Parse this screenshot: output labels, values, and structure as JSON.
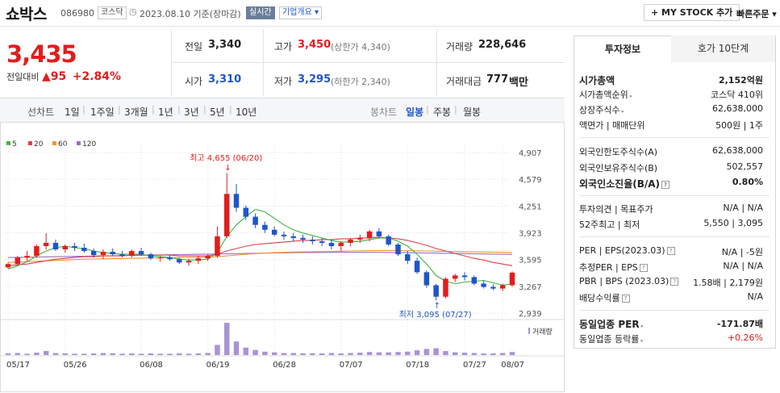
{
  "stock": {
    "name": "쇼박스",
    "code": "086980",
    "market": "코스닥",
    "date": "2023.08.10 기준(장마감)",
    "realtime": "실시간",
    "overview": "기업개요 ▾"
  },
  "header_buttons": {
    "my_stock": "+ MY STOCK 추가",
    "quick_order": "빠른주문 ▾"
  },
  "price": {
    "current": "3,435",
    "change_label": "전일대비",
    "change": "▲95",
    "change_pct": "+2.84%"
  },
  "quote": {
    "prev_label": "전일",
    "prev": "3,340",
    "high_label": "고가",
    "high": "3,450",
    "upper_limit": "(상한가 4,340)",
    "volume_label": "거래량",
    "volume": "228,646",
    "open_label": "시가",
    "open": "3,310",
    "low_label": "저가",
    "low": "3,295",
    "lower_limit": "(하한가 2,340)",
    "amount_label": "거래대금",
    "amount": "777",
    "amount_unit": "백만"
  },
  "toolbar": {
    "line_label": "선차트",
    "ranges": [
      "1일",
      "1주일",
      "3개월",
      "1년",
      "3년",
      "5년",
      "10년"
    ],
    "candle_label": "봉차트",
    "candles": [
      "일봉",
      "주봉",
      "월봉"
    ]
  },
  "tabs": {
    "invest": "투자정보",
    "orderbook": "호가 10단계"
  },
  "info": {
    "market_cap_label": "시가총액",
    "market_cap": "2,152억원",
    "rank_label": "시가총액순위",
    "rank": "코스닥 410위",
    "shares_label": "상장주식수",
    "shares": "62,638,000",
    "par_label": "액면가 | 매매단위",
    "par": "500원 | 1주",
    "foreign_limit_label": "외국인한도주식수(A)",
    "foreign_limit": "62,638,000",
    "foreign_hold_label": "외국인보유주식수(B)",
    "foreign_hold": "502,557",
    "foreign_ratio_label": "외국인소진율(B/A)",
    "foreign_ratio": "0.80%",
    "opinion_label": "투자의견 | 목표주가",
    "opinion": "N/A | N/A",
    "w52_label": "52주최고 | 최저",
    "w52": "5,550 | 3,095",
    "per_label": "PER | EPS(2023.03)",
    "per": "N/A | -5원",
    "est_label": "추정PER | EPS",
    "est": "N/A | N/A",
    "pbr_label": "PBR | BPS (2023.03)",
    "pbr": "1.58배 | 2,179원",
    "div_label": "배당수익률",
    "div": "N/A",
    "ind_per_label": "동일업종 PER",
    "ind_per": "-171.87배",
    "ind_rate_label": "동일업종 등락률",
    "ind_rate": "+0.26%"
  },
  "colors": {
    "up": "#e21d1d",
    "down": "#1f55c8",
    "ma5": "#3cb43c",
    "ma20": "#e0404a",
    "ma60": "#f0962a",
    "ma120": "#9a6cc9"
  },
  "chart_data": {
    "type": "candlestick",
    "legend": [
      "5",
      "20",
      "60",
      "120"
    ],
    "y_ticks": [
      "4,907",
      "4,579",
      "4,251",
      "3,923",
      "3,595",
      "3,267",
      "2,939"
    ],
    "x_ticks": [
      "05/17",
      "05/26",
      "06/08",
      "06/19",
      "06/28",
      "07/07",
      "07/18",
      "07/27",
      "08/07"
    ],
    "ylim": [
      2939,
      4907
    ],
    "annotations": {
      "high": "최고 4,655 (06/20)",
      "low": "최저 3,095 (07/27)"
    },
    "volume_label": "거래량",
    "candles": [
      [
        3500,
        3560,
        3480,
        3540
      ],
      [
        3540,
        3640,
        3520,
        3620
      ],
      [
        3620,
        3700,
        3580,
        3640
      ],
      [
        3640,
        3780,
        3620,
        3760
      ],
      [
        3760,
        3920,
        3720,
        3800
      ],
      [
        3800,
        3840,
        3700,
        3720
      ],
      [
        3720,
        3780,
        3680,
        3760
      ],
      [
        3760,
        3800,
        3700,
        3740
      ],
      [
        3740,
        3790,
        3680,
        3700
      ],
      [
        3700,
        3730,
        3620,
        3650
      ],
      [
        3650,
        3720,
        3600,
        3690
      ],
      [
        3690,
        3730,
        3640,
        3660
      ],
      [
        3660,
        3700,
        3620,
        3640
      ],
      [
        3640,
        3720,
        3620,
        3700
      ],
      [
        3700,
        3740,
        3640,
        3660
      ],
      [
        3660,
        3680,
        3590,
        3610
      ],
      [
        3610,
        3640,
        3570,
        3620
      ],
      [
        3620,
        3650,
        3580,
        3600
      ],
      [
        3600,
        3620,
        3540,
        3560
      ],
      [
        3560,
        3600,
        3520,
        3580
      ],
      [
        3580,
        3640,
        3540,
        3610
      ],
      [
        3610,
        3660,
        3580,
        3640
      ],
      [
        3640,
        4000,
        3620,
        3880
      ],
      [
        3880,
        4655,
        3860,
        4400
      ],
      [
        4400,
        4520,
        4180,
        4230
      ],
      [
        4230,
        4260,
        4080,
        4120
      ],
      [
        4120,
        4160,
        3980,
        4020
      ],
      [
        4020,
        4060,
        3920,
        3960
      ],
      [
        3960,
        4000,
        3880,
        3900
      ],
      [
        3900,
        3940,
        3840,
        3880
      ],
      [
        3880,
        3920,
        3820,
        3860
      ],
      [
        3860,
        3900,
        3800,
        3840
      ],
      [
        3840,
        3880,
        3780,
        3820
      ],
      [
        3820,
        3860,
        3760,
        3800
      ],
      [
        3800,
        3840,
        3720,
        3760
      ],
      [
        3760,
        3820,
        3700,
        3800
      ],
      [
        3800,
        3860,
        3760,
        3840
      ],
      [
        3840,
        3900,
        3800,
        3860
      ],
      [
        3860,
        3960,
        3820,
        3940
      ],
      [
        3940,
        3980,
        3860,
        3880
      ],
      [
        3880,
        3900,
        3760,
        3780
      ],
      [
        3780,
        3800,
        3640,
        3660
      ],
      [
        3660,
        3700,
        3540,
        3580
      ],
      [
        3580,
        3620,
        3420,
        3440
      ],
      [
        3440,
        3460,
        3250,
        3280
      ],
      [
        3280,
        3300,
        3095,
        3140
      ],
      [
        3140,
        3380,
        3120,
        3360
      ],
      [
        3360,
        3420,
        3320,
        3400
      ],
      [
        3400,
        3440,
        3340,
        3380
      ],
      [
        3380,
        3400,
        3280,
        3300
      ],
      [
        3300,
        3340,
        3240,
        3260
      ],
      [
        3260,
        3290,
        3220,
        3240
      ],
      [
        3240,
        3300,
        3210,
        3280
      ],
      [
        3280,
        3450,
        3260,
        3435
      ]
    ],
    "volumes": [
      5,
      6,
      4,
      7,
      12,
      6,
      5,
      4,
      4,
      5,
      6,
      5,
      4,
      5,
      4,
      5,
      4,
      4,
      5,
      4,
      5,
      6,
      30,
      95,
      40,
      22,
      15,
      10,
      8,
      6,
      6,
      5,
      5,
      5,
      6,
      5,
      6,
      7,
      9,
      8,
      8,
      9,
      10,
      14,
      18,
      20,
      12,
      8,
      7,
      6,
      5,
      5,
      6,
      9
    ],
    "ma5": [
      3480,
      3520,
      3570,
      3640,
      3700,
      3740,
      3760,
      3740,
      3730,
      3700,
      3680,
      3670,
      3660,
      3660,
      3660,
      3640,
      3630,
      3620,
      3600,
      3590,
      3590,
      3600,
      3680,
      3880,
      4020,
      4120,
      4210,
      4180,
      4100,
      4020,
      3960,
      3920,
      3890,
      3860,
      3830,
      3810,
      3810,
      3820,
      3840,
      3860,
      3860,
      3820,
      3760,
      3660,
      3540,
      3400,
      3330,
      3300,
      3320,
      3330,
      3340,
      3310,
      3280,
      3300
    ],
    "ma20": [
      3520,
      3530,
      3540,
      3560,
      3580,
      3600,
      3610,
      3620,
      3630,
      3630,
      3640,
      3640,
      3640,
      3650,
      3650,
      3650,
      3650,
      3650,
      3640,
      3640,
      3640,
      3640,
      3660,
      3700,
      3730,
      3760,
      3780,
      3790,
      3800,
      3810,
      3820,
      3830,
      3830,
      3840,
      3840,
      3850,
      3850,
      3860,
      3860,
      3870,
      3860,
      3850,
      3830,
      3800,
      3770,
      3730,
      3700,
      3670,
      3640,
      3610,
      3590,
      3560,
      3540,
      3520
    ],
    "ma60": [
      3560,
      3565,
      3570,
      3575,
      3580,
      3585,
      3590,
      3595,
      3600,
      3602,
      3604,
      3606,
      3608,
      3610,
      3612,
      3614,
      3616,
      3618,
      3620,
      3622,
      3624,
      3626,
      3630,
      3640,
      3650,
      3660,
      3668,
      3675,
      3680,
      3684,
      3688,
      3690,
      3692,
      3694,
      3696,
      3698,
      3700,
      3702,
      3704,
      3706,
      3706,
      3706,
      3704,
      3702,
      3700,
      3698,
      3696,
      3694,
      3692,
      3690,
      3688,
      3686,
      3684,
      3682
    ],
    "ma120": [
      3620,
      3622,
      3624,
      3626,
      3628,
      3630,
      3632,
      3634,
      3636,
      3638,
      3640,
      3642,
      3644,
      3646,
      3648,
      3650,
      3652,
      3654,
      3656,
      3658,
      3660,
      3662,
      3664,
      3666,
      3668,
      3670,
      3672,
      3674,
      3676,
      3678,
      3680,
      3681,
      3682,
      3683,
      3684,
      3684,
      3684,
      3684,
      3684,
      3684,
      3683,
      3682,
      3680,
      3678,
      3676,
      3674,
      3672,
      3670,
      3668,
      3666,
      3664,
      3662,
      3660,
      3658
    ]
  }
}
